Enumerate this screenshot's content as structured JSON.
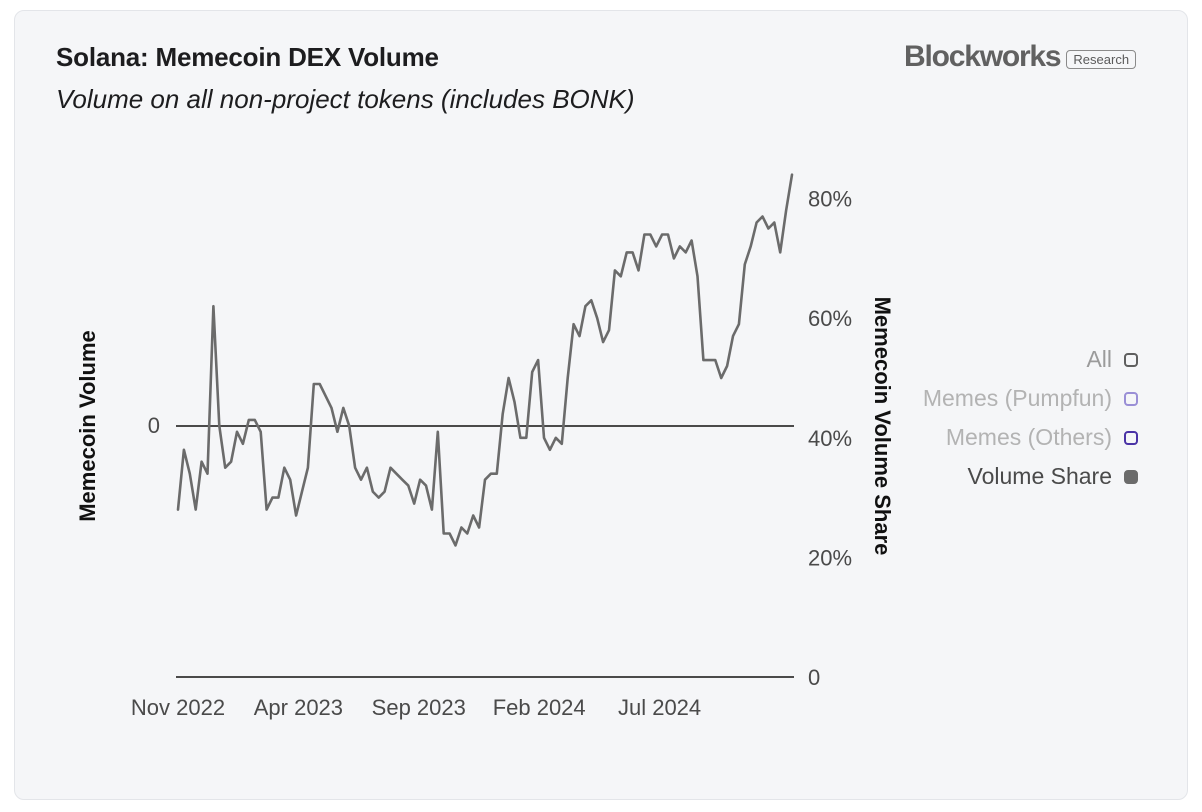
{
  "header": {
    "title": "Solana: Memecoin DEX Volume",
    "subtitle": "Volume on all non-project tokens (includes BONK)"
  },
  "brand": {
    "name": "Blockworks",
    "badge": "Research"
  },
  "legend": {
    "items": [
      {
        "label": "All",
        "text_color": "#9b9b9b",
        "box_color": "#5f5f5f",
        "box_fill": "none"
      },
      {
        "label": "Memes (Pumpfun)",
        "text_color": "#b3b3b3",
        "box_color": "#9a8fd6",
        "box_fill": "none"
      },
      {
        "label": "Memes (Others)",
        "text_color": "#b3b3b3",
        "box_color": "#4a33a6",
        "box_fill": "none"
      },
      {
        "label": "Volume Share",
        "text_color": "#4a4a4a",
        "box_color": "#6b6b6b",
        "box_fill": "#6b6b6b"
      }
    ]
  },
  "chart_data": {
    "type": "line",
    "title": "Solana: Memecoin DEX Volume",
    "subtitle": "Volume on all non-project tokens (includes BONK)",
    "ylabel_left": "Memecoin Volume",
    "ylabel_right": "Memecoin Volume Share",
    "left_ticks": [
      "0"
    ],
    "right_ticks": [
      "0",
      "20%",
      "40%",
      "60%",
      "80%"
    ],
    "ylim_right": [
      0,
      0.85
    ],
    "x_ticks": [
      "Nov 2022",
      "Apr 2023",
      "Sep 2023",
      "Feb 2024",
      "Jul 2024"
    ],
    "grid": false,
    "legend_position": "right",
    "series": [
      {
        "name": "Volume Share",
        "color": "#6b6b6b",
        "values": [
          0.28,
          0.38,
          0.34,
          0.28,
          0.36,
          0.34,
          0.62,
          0.42,
          0.35,
          0.36,
          0.41,
          0.39,
          0.43,
          0.43,
          0.41,
          0.28,
          0.3,
          0.3,
          0.35,
          0.33,
          0.27,
          0.31,
          0.35,
          0.49,
          0.49,
          0.47,
          0.45,
          0.41,
          0.45,
          0.42,
          0.35,
          0.33,
          0.35,
          0.31,
          0.3,
          0.31,
          0.35,
          0.34,
          0.33,
          0.32,
          0.29,
          0.33,
          0.32,
          0.28,
          0.41,
          0.24,
          0.24,
          0.22,
          0.25,
          0.24,
          0.27,
          0.25,
          0.33,
          0.34,
          0.34,
          0.44,
          0.5,
          0.46,
          0.4,
          0.4,
          0.51,
          0.53,
          0.4,
          0.38,
          0.4,
          0.39,
          0.5,
          0.59,
          0.57,
          0.62,
          0.63,
          0.6,
          0.56,
          0.58,
          0.68,
          0.67,
          0.71,
          0.71,
          0.68,
          0.74,
          0.74,
          0.72,
          0.74,
          0.74,
          0.7,
          0.72,
          0.71,
          0.73,
          0.67,
          0.53,
          0.53,
          0.53,
          0.5,
          0.52,
          0.57,
          0.59,
          0.69,
          0.72,
          0.76,
          0.77,
          0.75,
          0.76,
          0.71,
          0.78,
          0.84
        ]
      }
    ]
  }
}
